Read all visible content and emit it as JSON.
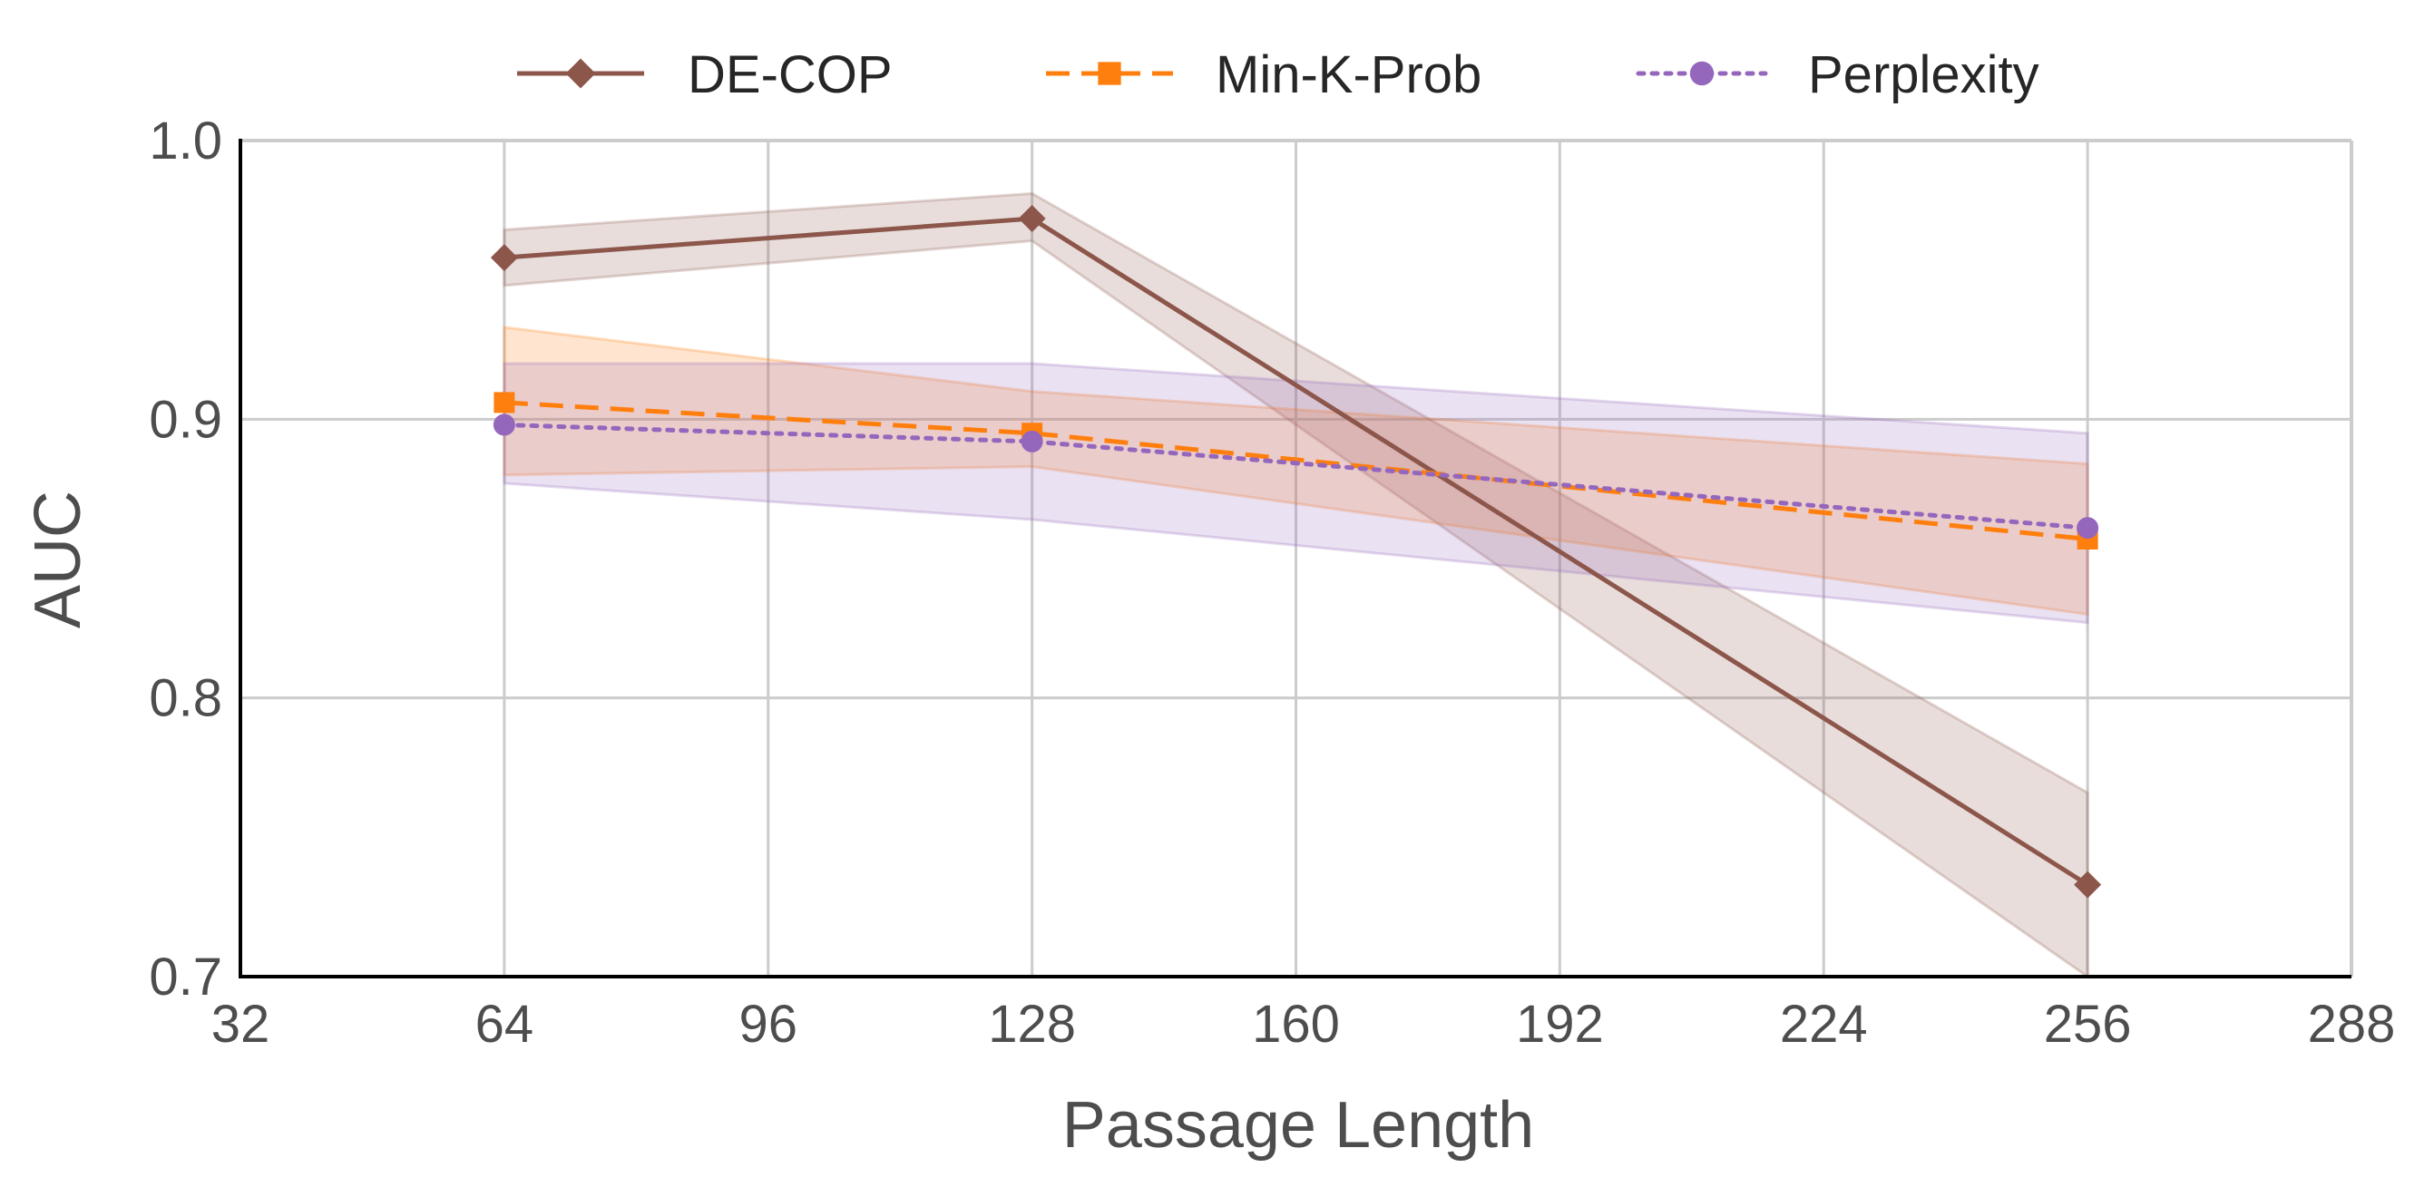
{
  "chart_data": {
    "type": "line",
    "title": "",
    "xlabel": "Passage Length",
    "ylabel": "AUC",
    "xlim": [
      32,
      288
    ],
    "ylim": [
      0.7,
      1.0
    ],
    "xticks": [
      32,
      64,
      96,
      128,
      160,
      192,
      224,
      256,
      288
    ],
    "xtick_labels": [
      "32",
      "64",
      "96",
      "128",
      "160",
      "192",
      "224",
      "256",
      "288"
    ],
    "yticks": [
      0.7,
      0.8,
      0.9,
      1.0
    ],
    "ytick_labels": [
      "0.7",
      "0.8",
      "0.9",
      "1.0"
    ],
    "grid": true,
    "legend_position": "top-center",
    "x": [
      64,
      128,
      256
    ],
    "series": [
      {
        "name": "DE-COP",
        "values": [
          0.958,
          0.972,
          0.733
        ],
        "lower": [
          0.948,
          0.964,
          0.7
        ],
        "upper": [
          0.968,
          0.981,
          0.766
        ],
        "color": "#8c564b",
        "marker": "diamond",
        "dash": "solid"
      },
      {
        "name": "Min-K-Prob",
        "values": [
          0.906,
          0.895,
          0.857
        ],
        "lower": [
          0.88,
          0.883,
          0.83
        ],
        "upper": [
          0.933,
          0.91,
          0.884
        ],
        "color": "#ff7f0e",
        "marker": "square",
        "dash": "dashed"
      },
      {
        "name": "Perplexity",
        "values": [
          0.898,
          0.892,
          0.861
        ],
        "lower": [
          0.877,
          0.864,
          0.827
        ],
        "upper": [
          0.92,
          0.92,
          0.895
        ],
        "color": "#9467bd",
        "marker": "circle",
        "dash": "dotted"
      }
    ]
  }
}
